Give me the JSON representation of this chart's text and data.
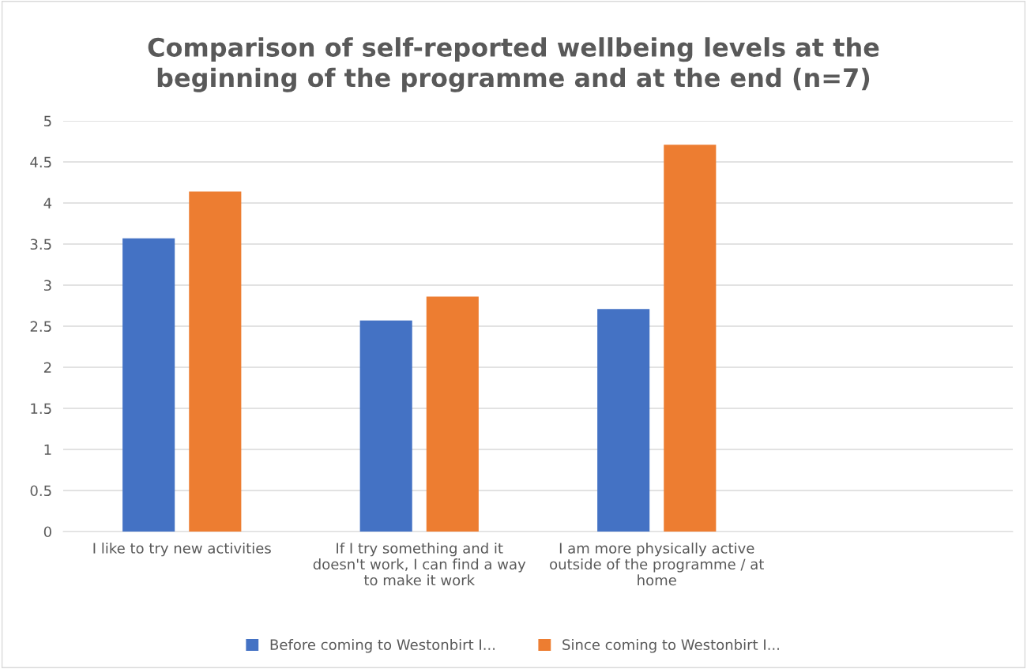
{
  "chart_data": {
    "type": "bar",
    "title": "Comparison of self-reported wellbeing levels at the beginning of the programme and at the end (n=7)",
    "categories": [
      "I like to try new activities",
      "If I try something and it doesn't work, I can find a way to make it work",
      "I am more physically active outside of the programme / at home",
      null
    ],
    "series": [
      {
        "name": "Before coming to Westonbirt I...",
        "color": "#4472c4",
        "values": [
          3.57,
          2.57,
          2.71,
          null
        ]
      },
      {
        "name": "Since coming to Westonbirt I...",
        "color": "#ed7d31",
        "values": [
          4.14,
          2.86,
          4.71,
          null
        ]
      }
    ],
    "ylim": [
      0,
      5
    ],
    "yticks": [
      0,
      0.5,
      1,
      1.5,
      2,
      2.5,
      3,
      3.5,
      4,
      4.5,
      5
    ],
    "grid": "y",
    "legend": "bottom"
  }
}
